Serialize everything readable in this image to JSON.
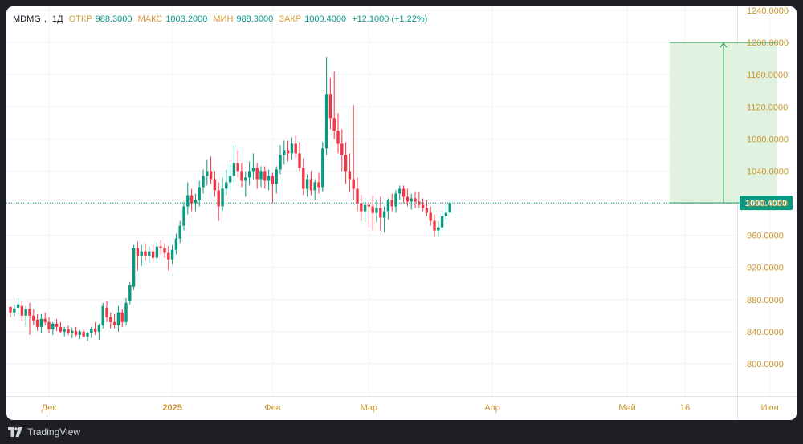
{
  "legend": {
    "symbol": "MDMG",
    "interval": "1Д",
    "open_label": "ОТКР",
    "open": "988.3000",
    "high_label": "МАКС",
    "high": "1003.2000",
    "low_label": "МИН",
    "low": "988.3000",
    "close_label": "ЗАКР",
    "close": "1000.4000",
    "change": "+12.1000 (+1.22%)"
  },
  "footer": {
    "brand": "TradingView"
  },
  "colors": {
    "up": "#089981",
    "down": "#f23645",
    "axis_text": "#c9952c",
    "grid": "#f0f3fa",
    "projection_fill": "#d9efd9",
    "projection_line": "#2e9e4f",
    "price_line": "#089981"
  },
  "chart_data": {
    "type": "candlestick",
    "ylim": [
      760,
      1245
    ],
    "y_ticks": [
      "800.0000",
      "840.0000",
      "880.0000",
      "920.0000",
      "960.0000",
      "1000.0000",
      "1040.0000",
      "1080.0000",
      "1120.0000",
      "1160.0000",
      "1200.0000",
      "1240.0000"
    ],
    "x_ticks": [
      {
        "label": "Дек",
        "index": 10
      },
      {
        "label": "2025",
        "index": 42
      },
      {
        "label": "Фев",
        "index": 68
      },
      {
        "label": "Мар",
        "index": 93
      },
      {
        "label": "Апр",
        "index": 125
      },
      {
        "label": "Май",
        "index": 160
      },
      {
        "label": "16",
        "index": 175
      },
      {
        "label": "Июн",
        "index": 197
      }
    ],
    "last_price": 1000.4,
    "last_price_label": "1000.4000",
    "projection": {
      "start_index": 171,
      "end_index": 199,
      "from": 1000.4,
      "to": 1200
    },
    "candles": [
      [
        871,
        871,
        858,
        864
      ],
      [
        864,
        874,
        859,
        869
      ],
      [
        870,
        882,
        862,
        874
      ],
      [
        872,
        878,
        853,
        860
      ],
      [
        860,
        872,
        846,
        868
      ],
      [
        868,
        876,
        836,
        860
      ],
      [
        860,
        868,
        848,
        854
      ],
      [
        855,
        862,
        841,
        846
      ],
      [
        846,
        862,
        838,
        856
      ],
      [
        856,
        864,
        848,
        852
      ],
      [
        852,
        858,
        838,
        843
      ],
      [
        843,
        852,
        836,
        850
      ],
      [
        850,
        856,
        841,
        846
      ],
      [
        846,
        852,
        838,
        840
      ],
      [
        840,
        846,
        834,
        843
      ],
      [
        843,
        848,
        836,
        838
      ],
      [
        838,
        845,
        832,
        841
      ],
      [
        841,
        846,
        834,
        836
      ],
      [
        836,
        842,
        831,
        840
      ],
      [
        840,
        844,
        832,
        834
      ],
      [
        834,
        840,
        828,
        838
      ],
      [
        838,
        846,
        832,
        844
      ],
      [
        844,
        852,
        836,
        840
      ],
      [
        840,
        850,
        830,
        848
      ],
      [
        848,
        876,
        844,
        872
      ],
      [
        870,
        878,
        852,
        858
      ],
      [
        858,
        864,
        844,
        852
      ],
      [
        852,
        862,
        844,
        848
      ],
      [
        848,
        872,
        840,
        864
      ],
      [
        864,
        868,
        846,
        852
      ],
      [
        852,
        882,
        848,
        876
      ],
      [
        878,
        902,
        874,
        898
      ],
      [
        896,
        948,
        892,
        944
      ],
      [
        944,
        952,
        916,
        934
      ],
      [
        934,
        948,
        922,
        940
      ],
      [
        940,
        950,
        928,
        934
      ],
      [
        934,
        946,
        926,
        940
      ],
      [
        940,
        948,
        926,
        932
      ],
      [
        932,
        952,
        926,
        946
      ],
      [
        946,
        954,
        936,
        944
      ],
      [
        944,
        950,
        932,
        938
      ],
      [
        938,
        946,
        916,
        930
      ],
      [
        930,
        948,
        924,
        942
      ],
      [
        942,
        962,
        936,
        956
      ],
      [
        956,
        978,
        950,
        972
      ],
      [
        972,
        1002,
        966,
        996
      ],
      [
        996,
        1026,
        986,
        1010
      ],
      [
        1010,
        1018,
        990,
        1000
      ],
      [
        1000,
        1012,
        990,
        1004
      ],
      [
        1004,
        1028,
        996,
        1020
      ],
      [
        1020,
        1042,
        1012,
        1034
      ],
      [
        1034,
        1054,
        1022,
        1040
      ],
      [
        1040,
        1058,
        1024,
        1030
      ],
      [
        1030,
        1040,
        1008,
        1016
      ],
      [
        1016,
        1026,
        978,
        996
      ],
      [
        996,
        1032,
        990,
        1018
      ],
      [
        1018,
        1042,
        1010,
        1026
      ],
      [
        1026,
        1048,
        1016,
        1034
      ],
      [
        1034,
        1072,
        1026,
        1050
      ],
      [
        1050,
        1066,
        1032,
        1040
      ],
      [
        1040,
        1050,
        1020,
        1028
      ],
      [
        1028,
        1040,
        1008,
        1032
      ],
      [
        1032,
        1052,
        1022,
        1040
      ],
      [
        1040,
        1062,
        1030,
        1044
      ],
      [
        1044,
        1050,
        1018,
        1030
      ],
      [
        1030,
        1046,
        1020,
        1040
      ],
      [
        1040,
        1046,
        1018,
        1028
      ],
      [
        1028,
        1042,
        1016,
        1034
      ],
      [
        1034,
        1038,
        1000,
        1024
      ],
      [
        1024,
        1046,
        1012,
        1042
      ],
      [
        1042,
        1072,
        1036,
        1060
      ],
      [
        1060,
        1078,
        1048,
        1066
      ],
      [
        1066,
        1078,
        1052,
        1062
      ],
      [
        1062,
        1082,
        1054,
        1074
      ],
      [
        1074,
        1084,
        1056,
        1062
      ],
      [
        1062,
        1076,
        1040,
        1044
      ],
      [
        1044,
        1056,
        1010,
        1018
      ],
      [
        1018,
        1036,
        1008,
        1030
      ],
      [
        1030,
        1040,
        1010,
        1016
      ],
      [
        1016,
        1030,
        1004,
        1026
      ],
      [
        1026,
        1038,
        1012,
        1020
      ],
      [
        1020,
        1076,
        1014,
        1068
      ],
      [
        1068,
        1182,
        1060,
        1136
      ],
      [
        1136,
        1156,
        1092,
        1106
      ],
      [
        1106,
        1164,
        1080,
        1090
      ],
      [
        1090,
        1112,
        1062,
        1074
      ],
      [
        1074,
        1092,
        1040,
        1060
      ],
      [
        1060,
        1076,
        1024,
        1040
      ],
      [
        1040,
        1062,
        1014,
        1030
      ],
      [
        1030,
        1122,
        1004,
        1018
      ],
      [
        1018,
        1032,
        990,
        1000
      ],
      [
        1000,
        1010,
        978,
        990
      ],
      [
        990,
        1006,
        976,
        998
      ],
      [
        998,
        1004,
        970,
        996
      ],
      [
        996,
        1010,
        966,
        988
      ],
      [
        988,
        1004,
        976,
        994
      ],
      [
        994,
        1008,
        966,
        982
      ],
      [
        982,
        996,
        964,
        990
      ],
      [
        990,
        1006,
        980,
        1004
      ],
      [
        1004,
        1012,
        990,
        996
      ],
      [
        996,
        1016,
        988,
        1012
      ],
      [
        1012,
        1022,
        1004,
        1018
      ],
      [
        1018,
        1022,
        1000,
        1008
      ],
      [
        1008,
        1018,
        996,
        1002
      ],
      [
        1002,
        1012,
        992,
        1006
      ],
      [
        1006,
        1014,
        994,
        1002
      ],
      [
        1002,
        1014,
        994,
        998
      ],
      [
        998,
        1006,
        990,
        994
      ],
      [
        994,
        1004,
        984,
        988
      ],
      [
        988,
        996,
        972,
        978
      ],
      [
        978,
        986,
        958,
        966
      ],
      [
        966,
        978,
        958,
        970
      ],
      [
        970,
        990,
        966,
        984
      ],
      [
        984,
        998,
        980,
        988
      ],
      [
        988.3,
        1003.2,
        988.3,
        1000.4
      ]
    ]
  }
}
